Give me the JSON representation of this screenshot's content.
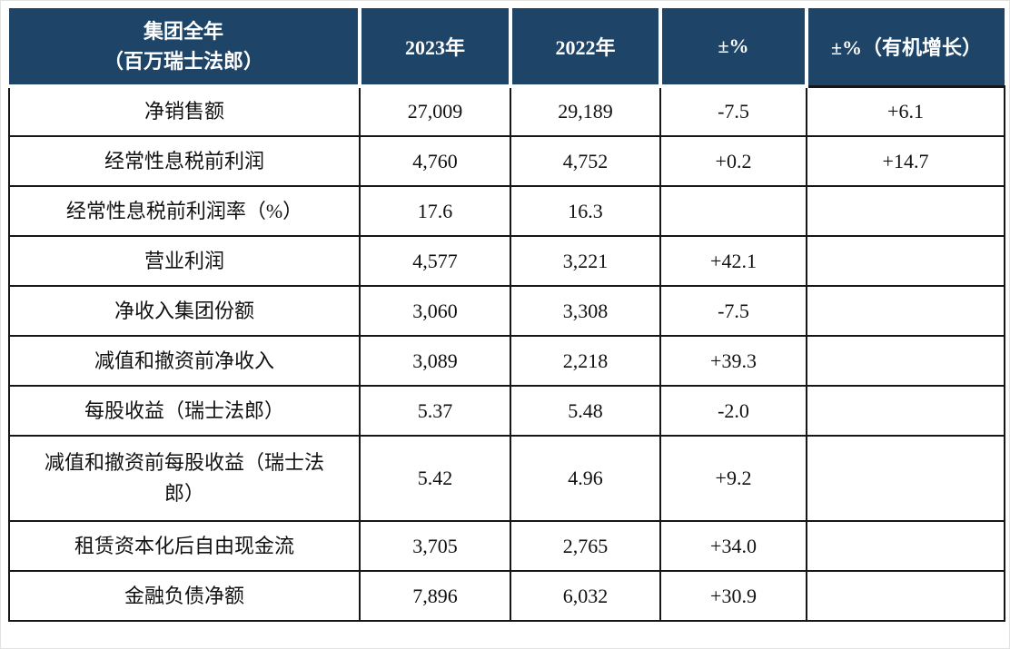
{
  "colors": {
    "header_bg": "#1e4467",
    "header_text": "#ffffff",
    "border": "#161616",
    "body_text": "#111111",
    "page_bg": "#ffffff"
  },
  "table": {
    "header": {
      "metric_title": "集团全年",
      "metric_subtitle": "（百万瑞士法郎）",
      "col_2023": "2023年",
      "col_2022": "2022年",
      "col_change": "±%",
      "col_organic": "±%（有机增长）"
    },
    "rows": [
      {
        "label": "净销售额",
        "v2023": "27,009",
        "v2022": "29,189",
        "change": "-7.5",
        "organic": "+6.1"
      },
      {
        "label": "经常性息税前利润",
        "v2023": "4,760",
        "v2022": "4,752",
        "change": "+0.2",
        "organic": "+14.7"
      },
      {
        "label": "经常性息税前利润率（%）",
        "v2023": "17.6",
        "v2022": "16.3",
        "change": "",
        "organic": ""
      },
      {
        "label": "营业利润",
        "v2023": "4,577",
        "v2022": "3,221",
        "change": "+42.1",
        "organic": ""
      },
      {
        "label": "净收入集团份额",
        "v2023": "3,060",
        "v2022": "3,308",
        "change": "-7.5",
        "organic": ""
      },
      {
        "label": "减值和撤资前净收入",
        "v2023": "3,089",
        "v2022": "2,218",
        "change": "+39.3",
        "organic": ""
      },
      {
        "label": "每股收益（瑞士法郎）",
        "v2023": "5.37",
        "v2022": "5.48",
        "change": "-2.0",
        "organic": ""
      },
      {
        "label": "减值和撤资前每股收益（瑞士法郎）",
        "v2023": "5.42",
        "v2022": "4.96",
        "change": "+9.2",
        "organic": ""
      },
      {
        "label": "租赁资本化后自由现金流",
        "v2023": "3,705",
        "v2022": "2,765",
        "change": "+34.0",
        "organic": ""
      },
      {
        "label": "金融负债净额",
        "v2023": "7,896",
        "v2022": "6,032",
        "change": "+30.9",
        "organic": ""
      }
    ]
  }
}
